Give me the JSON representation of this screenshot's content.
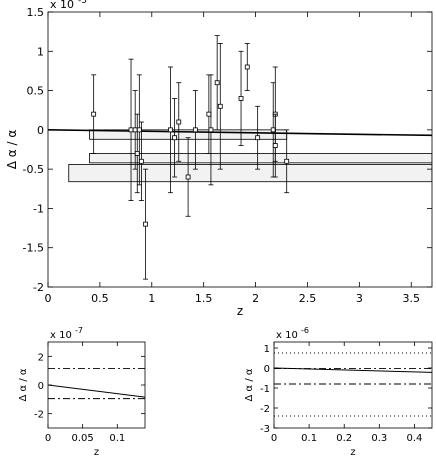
{
  "chart_data": [
    {
      "type": "scatter",
      "xlabel": "z",
      "ylabel": "Δ α / α",
      "y_multiplier": "x 10",
      "y_multiplier_exp": "-5",
      "xlim": [
        0,
        3.7
      ],
      "ylim": [
        -2,
        1.5
      ],
      "xticks": [
        0,
        0.5,
        1,
        1.5,
        2,
        2.5,
        3,
        3.5
      ],
      "xtick_labels": [
        "0",
        "0.5",
        "1",
        "1.5",
        "2",
        "2.5",
        "3",
        "3.5"
      ],
      "yticks": [
        -2,
        -1.5,
        -1,
        -0.5,
        0,
        0.5,
        1,
        1.5
      ],
      "ytick_labels": [
        "-2",
        "-1.5",
        "-1",
        "-0.5",
        "0",
        "0.5",
        "1",
        "1.5"
      ],
      "grid": false,
      "points": [
        {
          "x": 0.44,
          "y": 0.2,
          "lo": -0.3,
          "hi": 0.7
        },
        {
          "x": 0.8,
          "y": 0.0,
          "lo": -0.9,
          "hi": 0.9
        },
        {
          "x": 0.84,
          "y": 0.0,
          "lo": -0.5,
          "hi": 0.5
        },
        {
          "x": 0.86,
          "y": -0.3,
          "lo": -0.8,
          "hi": 0.2
        },
        {
          "x": 0.88,
          "y": 0.0,
          "lo": -0.7,
          "hi": 0.7
        },
        {
          "x": 0.9,
          "y": -0.4,
          "lo": -0.9,
          "hi": 0.1
        },
        {
          "x": 0.94,
          "y": -1.2,
          "lo": -1.9,
          "hi": -0.5
        },
        {
          "x": 1.18,
          "y": 0.0,
          "lo": -0.8,
          "hi": 0.8
        },
        {
          "x": 1.22,
          "y": -0.1,
          "lo": -0.6,
          "hi": 0.4
        },
        {
          "x": 1.26,
          "y": 0.1,
          "lo": -0.4,
          "hi": 0.6
        },
        {
          "x": 1.35,
          "y": -0.6,
          "lo": -1.1,
          "hi": -0.1
        },
        {
          "x": 1.42,
          "y": 0.0,
          "lo": -0.5,
          "hi": 0.5
        },
        {
          "x": 1.55,
          "y": 0.2,
          "lo": -0.3,
          "hi": 0.7
        },
        {
          "x": 1.57,
          "y": 0.0,
          "lo": -0.7,
          "hi": 0.7
        },
        {
          "x": 1.63,
          "y": 0.6,
          "lo": 0.0,
          "hi": 1.2
        },
        {
          "x": 1.66,
          "y": 0.3,
          "lo": -0.5,
          "hi": 1.1
        },
        {
          "x": 1.86,
          "y": 0.4,
          "lo": -0.2,
          "hi": 1.0
        },
        {
          "x": 1.92,
          "y": 0.8,
          "lo": 0.5,
          "hi": 1.1
        },
        {
          "x": 2.02,
          "y": -0.1,
          "lo": -0.5,
          "hi": 0.3
        },
        {
          "x": 2.17,
          "y": 0.0,
          "lo": -0.6,
          "hi": 0.6
        },
        {
          "x": 2.19,
          "y": 0.2,
          "lo": -0.4,
          "hi": 0.8
        },
        {
          "x": 2.19,
          "y": -0.2,
          "lo": -0.6,
          "hi": 0.2
        },
        {
          "x": 2.3,
          "y": -0.4,
          "lo": -0.8,
          "hi": 0.0
        }
      ],
      "boxes": [
        {
          "x0": 0.4,
          "x1": 2.3,
          "y0": -0.12,
          "y1": 0.0
        },
        {
          "x0": 0.4,
          "x1": 3.7,
          "y0": -0.42,
          "y1": -0.3
        },
        {
          "x0": 0.2,
          "x1": 3.7,
          "y0": -0.66,
          "y1": -0.44
        }
      ],
      "trend_line": {
        "x": [
          0,
          3.7
        ],
        "y": [
          0.0,
          -0.07
        ]
      }
    },
    {
      "type": "line",
      "xlabel": "z",
      "ylabel": "Δ α / α",
      "y_multiplier": "x 10",
      "y_multiplier_exp": "-7",
      "xlim": [
        0,
        0.14
      ],
      "ylim": [
        -3,
        3
      ],
      "xticks": [
        0,
        0.05,
        0.1
      ],
      "xtick_labels": [
        "0",
        "0.05",
        "0.1"
      ],
      "yticks": [
        -2,
        0,
        2
      ],
      "ytick_labels": [
        "-2",
        "0",
        "2"
      ],
      "grid": false,
      "series": [
        {
          "style": "solid",
          "x": [
            0,
            0.14
          ],
          "y": [
            0.0,
            -0.85
          ]
        },
        {
          "style": "dashdot",
          "x": [
            0,
            0.14
          ],
          "y": [
            1.15,
            1.15
          ]
        },
        {
          "style": "dashdot",
          "x": [
            0,
            0.14
          ],
          "y": [
            -0.95,
            -0.95
          ]
        }
      ]
    },
    {
      "type": "line",
      "xlabel": "z",
      "ylabel": "Δ α / α",
      "y_multiplier": "x 10",
      "y_multiplier_exp": "-6",
      "xlim": [
        0,
        0.45
      ],
      "ylim": [
        -3,
        1.3
      ],
      "xticks": [
        0,
        0.1,
        0.2,
        0.3,
        0.4
      ],
      "xtick_labels": [
        "0",
        "0.1",
        "0.2",
        "0.3",
        "0.4"
      ],
      "yticks": [
        -3,
        -2,
        -1,
        0,
        1
      ],
      "ytick_labels": [
        "-3",
        "-2",
        "-1",
        "0",
        "1"
      ],
      "grid": false,
      "series": [
        {
          "style": "solid",
          "x": [
            0,
            0.45
          ],
          "y": [
            0.0,
            -0.22
          ]
        },
        {
          "style": "dashdot",
          "x": [
            0,
            0.45
          ],
          "y": [
            -0.03,
            -0.03
          ]
        },
        {
          "style": "dashdot",
          "x": [
            0,
            0.45
          ],
          "y": [
            -0.8,
            -0.8
          ]
        },
        {
          "style": "dotted",
          "x": [
            0,
            0.45
          ],
          "y": [
            0.75,
            0.75
          ]
        },
        {
          "style": "dotted",
          "x": [
            0,
            0.45
          ],
          "y": [
            -2.4,
            -2.4
          ]
        }
      ]
    }
  ]
}
